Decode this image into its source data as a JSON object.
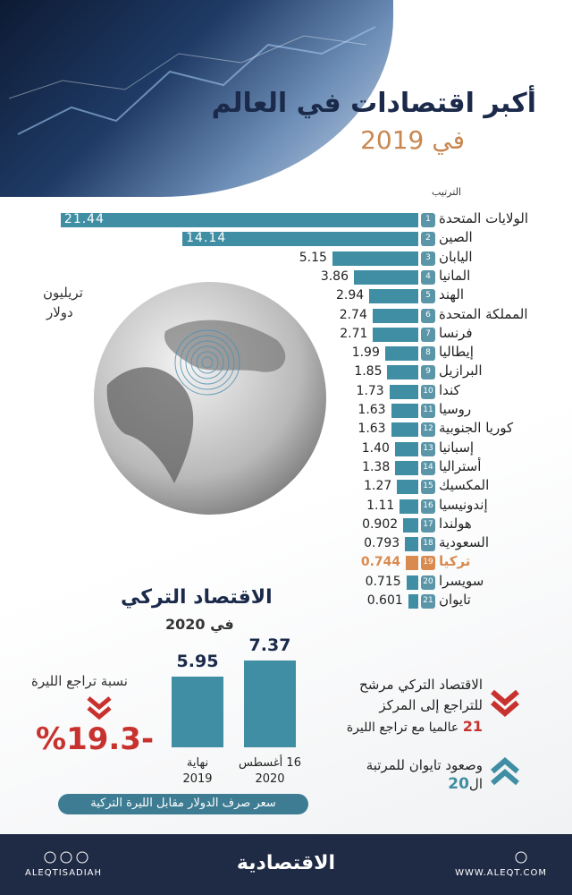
{
  "header": {
    "title": "أكبر اقتصادات في العالم",
    "subtitle": "في 2019"
  },
  "chart_data": [
    {
      "type": "hbar",
      "rank_label": "الترتيب",
      "unit_label": [
        "تريليون",
        "دولار"
      ],
      "ranks": [
        "1",
        "2",
        "3",
        "4",
        "5",
        "6",
        "7",
        "8",
        "9",
        "10",
        "11",
        "12",
        "13",
        "14",
        "15",
        "16",
        "17",
        "18",
        "19",
        "20",
        "21"
      ],
      "categories": [
        "الولايات المتحدة",
        "الصين",
        "اليابان",
        "المانيا",
        "الهند",
        "المملكة المتحدة",
        "فرنسا",
        "إيطاليا",
        "البرازيل",
        "كندا",
        "روسيا",
        "كوريا الجنوبية",
        "إسبانيا",
        "أستراليا",
        "المكسيك",
        "إندونيسيا",
        "هولندا",
        "السعودية",
        "تركيا",
        "سويسرا",
        "تايوان"
      ],
      "values": [
        21.44,
        14.14,
        5.15,
        3.86,
        2.94,
        2.74,
        2.71,
        1.99,
        1.85,
        1.73,
        1.63,
        1.63,
        1.4,
        1.38,
        1.27,
        1.11,
        0.902,
        0.793,
        0.744,
        0.715,
        0.601
      ],
      "value_labels": [
        "21.44",
        "14.14",
        "5.15",
        "3.86",
        "2.94",
        "2.74",
        "2.71",
        "1.99",
        "1.85",
        "1.73",
        "1.63",
        "1.63",
        "1.40",
        "1.38",
        "1.27",
        "1.11",
        "0.902",
        "0.793",
        "0.744",
        "0.715",
        "0.601"
      ],
      "colors": [
        "#3f8ea3",
        "#3f8ea3",
        "#3f8ea3",
        "#3f8ea3",
        "#3f8ea3",
        "#3f8ea3",
        "#3f8ea3",
        "#3f8ea3",
        "#3f8ea3",
        "#3f8ea3",
        "#3f8ea3",
        "#3f8ea3",
        "#3f8ea3",
        "#3f8ea3",
        "#3f8ea3",
        "#3f8ea3",
        "#3f8ea3",
        "#3f8ea3",
        "#d98a4e",
        "#3f8ea3",
        "#3f8ea3"
      ]
    },
    {
      "type": "bar",
      "title": "الاقتصاد التركي",
      "subtitle": "في 2020",
      "categories": [
        [
          "نهاية",
          "2019"
        ],
        [
          "16 أغسطس",
          "2020"
        ]
      ],
      "values": [
        5.95,
        7.37
      ],
      "color": "#3f8ea3",
      "caption": "سعر صرف الدولار مقابل الليرة التركية"
    }
  ],
  "lira": {
    "label": "نسبة تراجع الليرة",
    "change": "%19.3-"
  },
  "notes": [
    {
      "lines": [
        "الاقتصاد التركي مرشح",
        "للتراجع إلى المركز"
      ],
      "highlight": "21",
      "tail": "عالميا مع تراجع الليرة"
    },
    {
      "lines": [
        "وصعود تايوان للمرتبة"
      ],
      "prefix": "ال",
      "highlight": "20"
    }
  ],
  "footer": {
    "handle": "ALEQTISADIAH",
    "logo": "الاقتصادية",
    "site": "WWW.ALEQT.COM"
  }
}
